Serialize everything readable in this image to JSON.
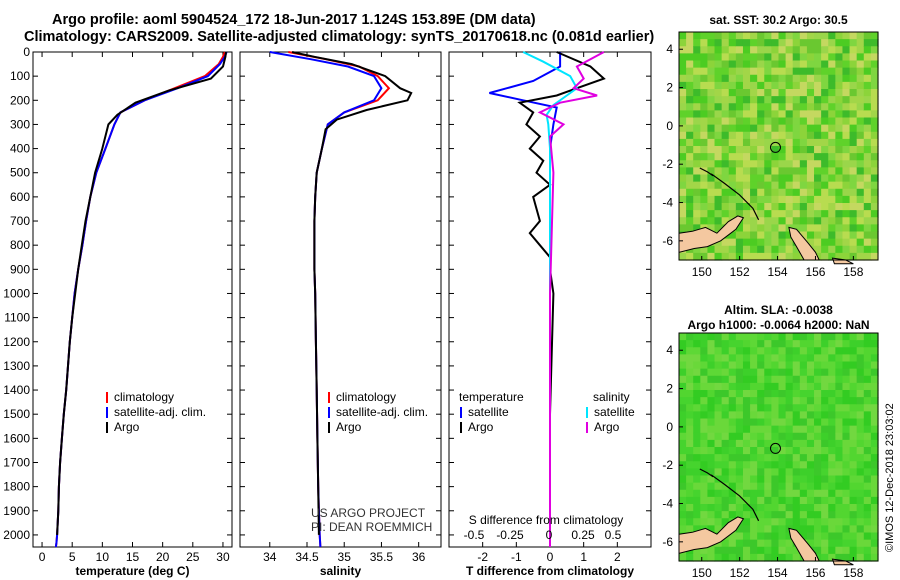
{
  "title": {
    "line1": "Argo profile: aoml 5904524_172 18-Jun-2017 1.124S 153.89E (DM data)",
    "line2": "Climatology: CARS2009. Satellite-adjusted climatology: synTS_20170618.nc (0.081d earlier)"
  },
  "timestamp": "©IMOS 12-Dec-2018 23:03:02",
  "depth_ticks": [
    0,
    100,
    200,
    300,
    400,
    500,
    600,
    700,
    800,
    900,
    1000,
    1100,
    1200,
    1300,
    1400,
    1500,
    1600,
    1700,
    1800,
    1900,
    2000
  ],
  "colors": {
    "climatology": "#ff0000",
    "satellite": "#0000ff",
    "argo": "#000000",
    "s_sat": "#00e5ff",
    "s_argo": "#e000e0"
  },
  "chart_data": [
    {
      "type": "line",
      "panel": "temperature",
      "xlabel": "temperature (deg C)",
      "ylim": [
        2050,
        0
      ],
      "xlim": [
        -1.5,
        31.5
      ],
      "xticks": [
        0,
        5,
        10,
        15,
        20,
        25,
        30
      ],
      "legend": [
        "climatology",
        "satellite-adj. clim.",
        "Argo"
      ],
      "series": [
        {
          "name": "climatology",
          "color": "#ff0000",
          "x": [
            30.3,
            30,
            29.3,
            27,
            22,
            17,
            13,
            12,
            10.5,
            9,
            8,
            7.3,
            6.7,
            6,
            5.4,
            5,
            4.6,
            4.3,
            4,
            3.6,
            3.3,
            3,
            2.8,
            2.7,
            2.6,
            2.5,
            2.4,
            2.3
          ],
          "y": [
            0,
            20,
            50,
            100,
            150,
            200,
            250,
            300,
            400,
            500,
            600,
            700,
            800,
            900,
            1000,
            1100,
            1200,
            1300,
            1400,
            1500,
            1600,
            1700,
            1800,
            1900,
            1950,
            2000,
            2030,
            2050
          ]
        },
        {
          "name": "satellite-adj. clim.",
          "color": "#0000ff",
          "x": [
            30.6,
            30.3,
            29.5,
            27.5,
            22.5,
            17,
            13,
            12,
            10.5,
            9,
            8,
            7.3,
            6.7,
            6,
            5.4,
            5,
            4.6,
            4.3,
            4,
            3.6,
            3.3,
            3,
            2.8,
            2.7,
            2.6,
            2.5,
            2.4,
            2.3
          ],
          "y": [
            0,
            20,
            50,
            100,
            150,
            200,
            250,
            300,
            400,
            500,
            600,
            700,
            800,
            900,
            1000,
            1100,
            1200,
            1300,
            1400,
            1500,
            1600,
            1700,
            1800,
            1900,
            1950,
            2000,
            2030,
            2050
          ]
        },
        {
          "name": "Argo",
          "color": "#000000",
          "x": [
            30.5,
            30.4,
            30,
            28,
            21,
            15.5,
            12.5,
            11,
            10,
            8.8,
            8,
            7.2,
            6.6,
            6,
            5.5,
            5,
            4.6,
            4.3,
            4,
            3.6,
            3.3,
            3,
            2.8,
            2.7,
            2.6,
            2.5
          ],
          "y": [
            0,
            20,
            60,
            110,
            160,
            210,
            260,
            300,
            400,
            500,
            600,
            700,
            800,
            900,
            1000,
            1100,
            1200,
            1300,
            1400,
            1500,
            1600,
            1700,
            1800,
            1900,
            1950,
            2000
          ]
        }
      ]
    },
    {
      "type": "line",
      "panel": "salinity",
      "xlabel": "salinity",
      "ylim": [
        2050,
        0
      ],
      "xlim": [
        33.6,
        36.3
      ],
      "xticks": [
        34,
        34.5,
        35,
        35.5,
        36
      ],
      "xtick_labels": [
        "34",
        "34.5",
        "35",
        "35.5",
        "36"
      ],
      "legend": [
        "climatology",
        "satellite-adj. clim.",
        "Argo"
      ],
      "series": [
        {
          "name": "climatology",
          "color": "#ff0000",
          "x": [
            34.25,
            34.75,
            35.2,
            35.45,
            35.6,
            35.45,
            35.0,
            34.78,
            34.7,
            34.63,
            34.61,
            34.6,
            34.6,
            34.6,
            34.61,
            34.62,
            34.63,
            34.64,
            34.65,
            34.66,
            34.67,
            34.68
          ],
          "y": [
            0,
            30,
            60,
            100,
            150,
            200,
            250,
            300,
            400,
            500,
            600,
            700,
            800,
            900,
            1000,
            1200,
            1400,
            1600,
            1800,
            1900,
            2000,
            2050
          ]
        },
        {
          "name": "satellite-adj. clim.",
          "color": "#0000ff",
          "x": [
            34.0,
            34.55,
            35.05,
            35.4,
            35.5,
            35.4,
            35.0,
            34.78,
            34.7,
            34.63,
            34.61,
            34.6,
            34.6,
            34.6,
            34.61,
            34.62,
            34.63,
            34.64,
            34.65,
            34.66,
            34.67,
            34.68
          ],
          "y": [
            0,
            30,
            60,
            100,
            150,
            200,
            250,
            300,
            400,
            500,
            600,
            700,
            800,
            900,
            1000,
            1200,
            1400,
            1600,
            1800,
            1900,
            2000,
            2050
          ]
        },
        {
          "name": "Argo",
          "color": "#000000",
          "x": [
            34.3,
            34.6,
            35.1,
            35.55,
            35.75,
            35.9,
            35.85,
            35.3,
            34.9,
            34.75,
            34.7,
            34.63,
            34.61,
            34.6,
            34.6,
            34.6,
            34.61,
            34.62,
            34.63,
            34.64,
            34.65,
            34.66
          ],
          "y": [
            0,
            20,
            50,
            100,
            150,
            170,
            200,
            240,
            280,
            320,
            400,
            500,
            600,
            700,
            800,
            900,
            1000,
            1200,
            1400,
            1600,
            1800,
            2000
          ]
        }
      ]
    },
    {
      "type": "line",
      "panel": "differences",
      "xlabel": "T difference from climatology",
      "xlabel2": "S difference from climatology",
      "ylim": [
        2050,
        0
      ],
      "xlim": [
        -3,
        3
      ],
      "xticks": [
        -2,
        -1,
        0,
        1,
        2
      ],
      "s_ticks": [
        "-0.5",
        "-0.25",
        "0",
        "0.25",
        "0.5"
      ],
      "legend_left_title": "temperature",
      "legend_right_title": "salinity",
      "legend_left": [
        "satellite",
        "Argo"
      ],
      "legend_right": [
        "satellite",
        "Argo"
      ],
      "series": [
        {
          "name": "temperature satellite",
          "color": "#0000ff",
          "x": [
            0.3,
            0.3,
            -0.5,
            -1.8,
            -0.8,
            0.2,
            0.1,
            0,
            0
          ],
          "y": [
            0,
            60,
            120,
            170,
            200,
            230,
            300,
            400,
            2050
          ]
        },
        {
          "name": "temperature Argo",
          "color": "#000000",
          "x": [
            0.2,
            1.2,
            1.6,
            0.8,
            0.2,
            -0.9,
            -0.5,
            -0.7,
            -0.3,
            -0.6,
            -0.2,
            -0.4,
            0,
            -0.5,
            -0.3,
            -0.6,
            -0.3,
            0,
            0,
            0.1,
            0,
            0
          ],
          "y": [
            0,
            60,
            110,
            150,
            180,
            210,
            250,
            300,
            350,
            400,
            450,
            500,
            550,
            600,
            700,
            750,
            800,
            850,
            900,
            1000,
            1500,
            2050
          ]
        },
        {
          "name": "salinity satellite",
          "color": "#00e5ff",
          "x": [
            -0.8,
            -0.2,
            0.6,
            0.8,
            0.5,
            0.1,
            -0.1,
            -0.05,
            0,
            0
          ],
          "y": [
            0,
            40,
            100,
            150,
            180,
            220,
            260,
            300,
            400,
            2050
          ]
        },
        {
          "name": "salinity Argo",
          "color": "#e000e0",
          "x": [
            1.6,
            0.8,
            1.0,
            0.7,
            1.4,
            0.3,
            -0.3,
            0.4,
            0,
            0.1,
            0,
            0
          ],
          "y": [
            0,
            60,
            110,
            150,
            180,
            210,
            250,
            300,
            350,
            500,
            1000,
            2050
          ]
        }
      ]
    }
  ],
  "maps": [
    {
      "title1": "sat. SST: 30.2 Argo: 30.5",
      "title2": "",
      "yticks": [
        "4",
        "2",
        "0",
        "-2",
        "-4",
        "-6"
      ],
      "xticks": [
        "150",
        "152",
        "154",
        "156",
        "158"
      ]
    },
    {
      "title1": "Altim. SLA: -0.0038",
      "title2": "Argo h1000: -0.0064 h2000: NaN",
      "yticks": [
        "4",
        "2",
        "0",
        "-2",
        "-4",
        "-6"
      ],
      "xticks": [
        "150",
        "152",
        "154",
        "156",
        "158"
      ]
    }
  ],
  "credits": {
    "line1": "US ARGO PROJECT",
    "line2": "PI: DEAN ROEMMICH"
  }
}
